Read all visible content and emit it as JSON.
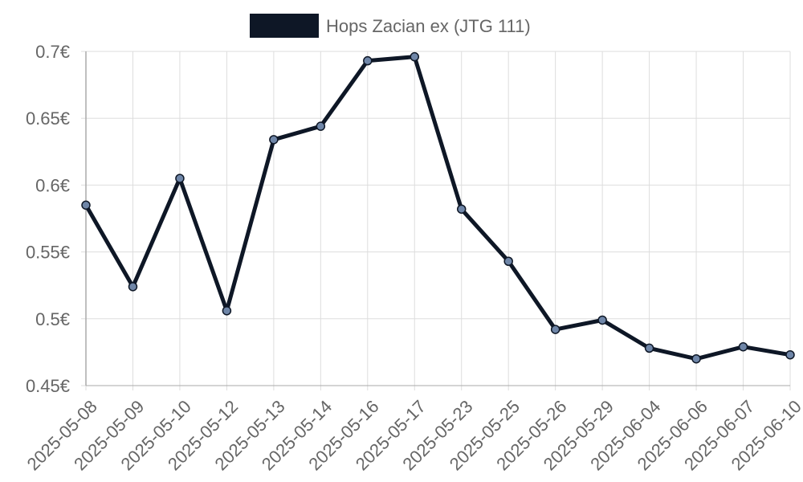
{
  "chart_data": {
    "type": "line",
    "title": "",
    "xlabel": "",
    "ylabel": "",
    "x": [
      "2025-05-08",
      "2025-05-09",
      "2025-05-10",
      "2025-05-12",
      "2025-05-13",
      "2025-05-14",
      "2025-05-16",
      "2025-05-17",
      "2025-05-23",
      "2025-05-25",
      "2025-05-26",
      "2025-05-29",
      "2025-06-04",
      "2025-06-06",
      "2025-06-07",
      "2025-06-10"
    ],
    "series": [
      {
        "name": "Hops Zacian ex (JTG 111)",
        "values": [
          0.585,
          0.524,
          0.605,
          0.506,
          0.634,
          0.644,
          0.693,
          0.696,
          0.582,
          0.543,
          0.492,
          0.499,
          0.478,
          0.47,
          0.479,
          0.473
        ]
      }
    ],
    "ylim": [
      0.45,
      0.7
    ],
    "yticks": [
      0.45,
      0.5,
      0.55,
      0.6,
      0.65,
      0.7
    ],
    "ytick_labels": [
      "0.45€",
      "0.5€",
      "0.55€",
      "0.6€",
      "0.65€",
      "0.7€"
    ],
    "grid": true,
    "legend_position": "top-center",
    "colors": {
      "line": "#0e1726",
      "point_fill": "#6f86a8",
      "point_stroke": "#0e1726",
      "legend_box": "#0e1726",
      "grid": "#dddddd",
      "axis": "#aaaaaa",
      "text": "#666666"
    }
  }
}
